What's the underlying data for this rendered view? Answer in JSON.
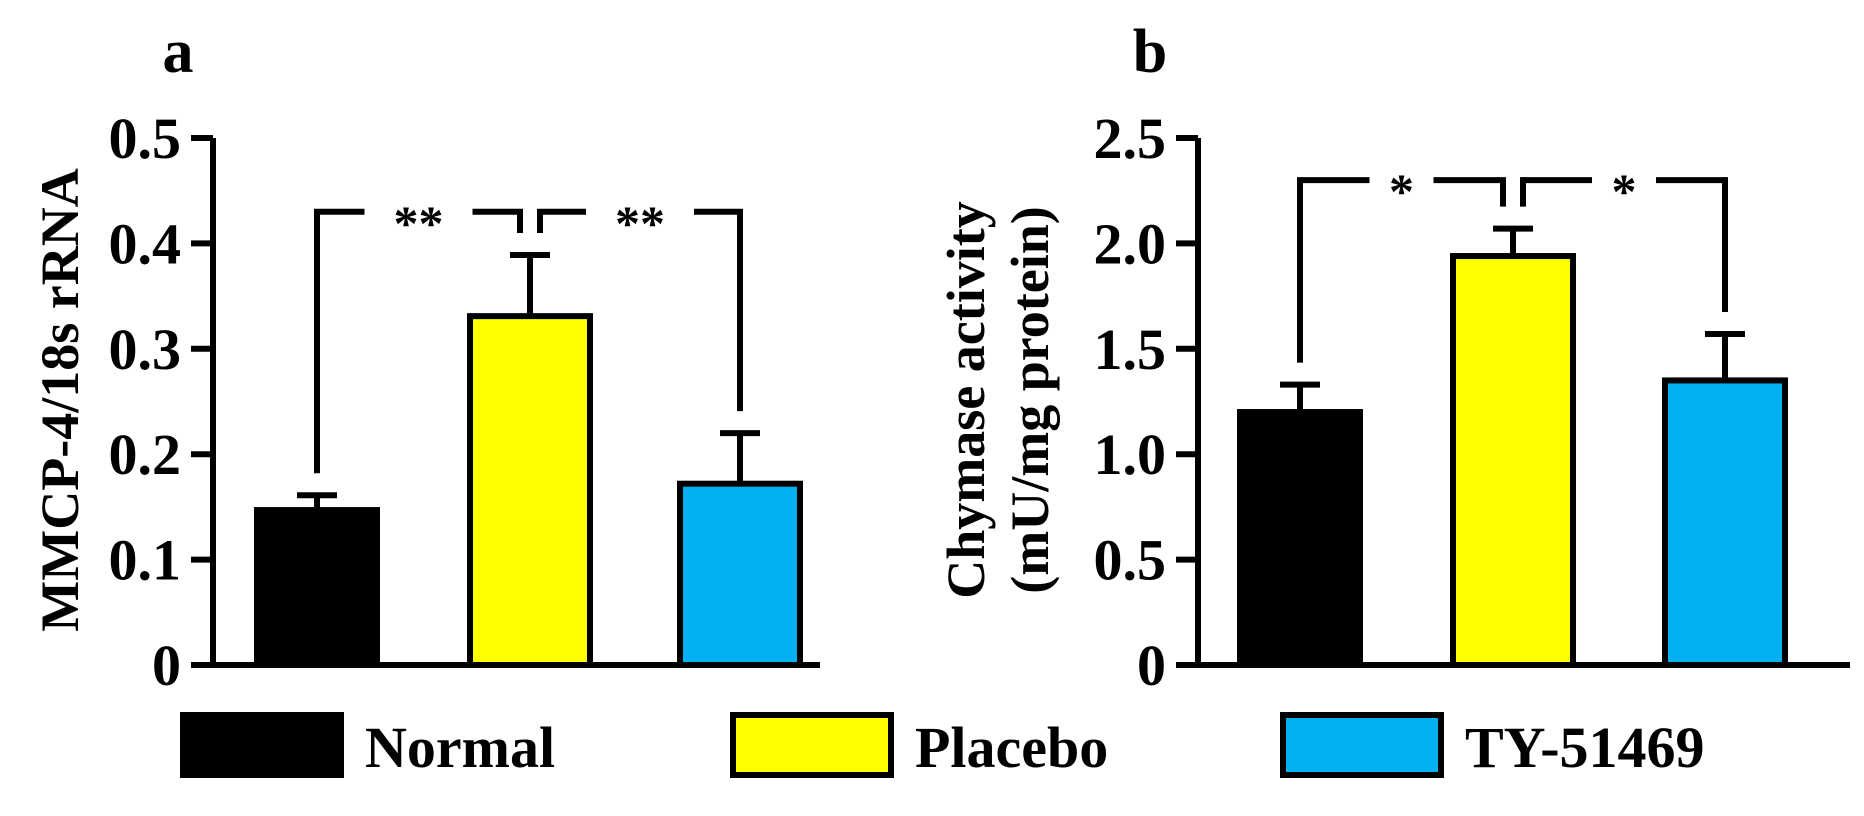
{
  "chart_data": [
    {
      "type": "bar",
      "panel_label": "a",
      "ylabel": "MMCP-4/18s rRNA",
      "ylim": [
        0,
        0.5
      ],
      "yticks": [
        0,
        0.1,
        0.2,
        0.3,
        0.4,
        0.5
      ],
      "ytick_labels": [
        "0",
        "0.1",
        "0.2",
        "0.3",
        "0.4",
        "0.5"
      ],
      "categories": [
        "Normal",
        "Placebo",
        "TY-51469"
      ],
      "values": [
        0.147,
        0.331,
        0.172
      ],
      "errors": [
        0.014,
        0.058,
        0.048
      ],
      "colors": [
        "#000000",
        "#ffff00",
        "#00b0f0"
      ],
      "significance": [
        {
          "from": 0,
          "to": 1,
          "label": "**",
          "level": 0.43
        },
        {
          "from": 1,
          "to": 2,
          "label": "**",
          "level": 0.43
        }
      ]
    },
    {
      "type": "bar",
      "panel_label": "b",
      "ylabel": [
        "Chymase activity",
        "(mU/mg protein)"
      ],
      "ylim": [
        0,
        2.5
      ],
      "yticks": [
        0,
        0.5,
        1.0,
        1.5,
        2.0,
        2.5
      ],
      "ytick_labels": [
        "0",
        "0.5",
        "1.0",
        "1.5",
        "2.0",
        "2.5"
      ],
      "categories": [
        "Normal",
        "Placebo",
        "TY-51469"
      ],
      "values": [
        1.2,
        1.94,
        1.35
      ],
      "errors": [
        0.13,
        0.13,
        0.22
      ],
      "colors": [
        "#000000",
        "#ffff00",
        "#00b0f0"
      ],
      "significance": [
        {
          "from": 0,
          "to": 1,
          "label": "*",
          "level": 2.3
        },
        {
          "from": 1,
          "to": 2,
          "label": "*",
          "level": 2.3
        }
      ]
    }
  ],
  "legend": {
    "placement": "bottom",
    "items": [
      {
        "label": "Normal",
        "color": "#000000"
      },
      {
        "label": "Placebo",
        "color": "#ffff00"
      },
      {
        "label": "TY-51469",
        "color": "#00b0f0"
      }
    ]
  }
}
